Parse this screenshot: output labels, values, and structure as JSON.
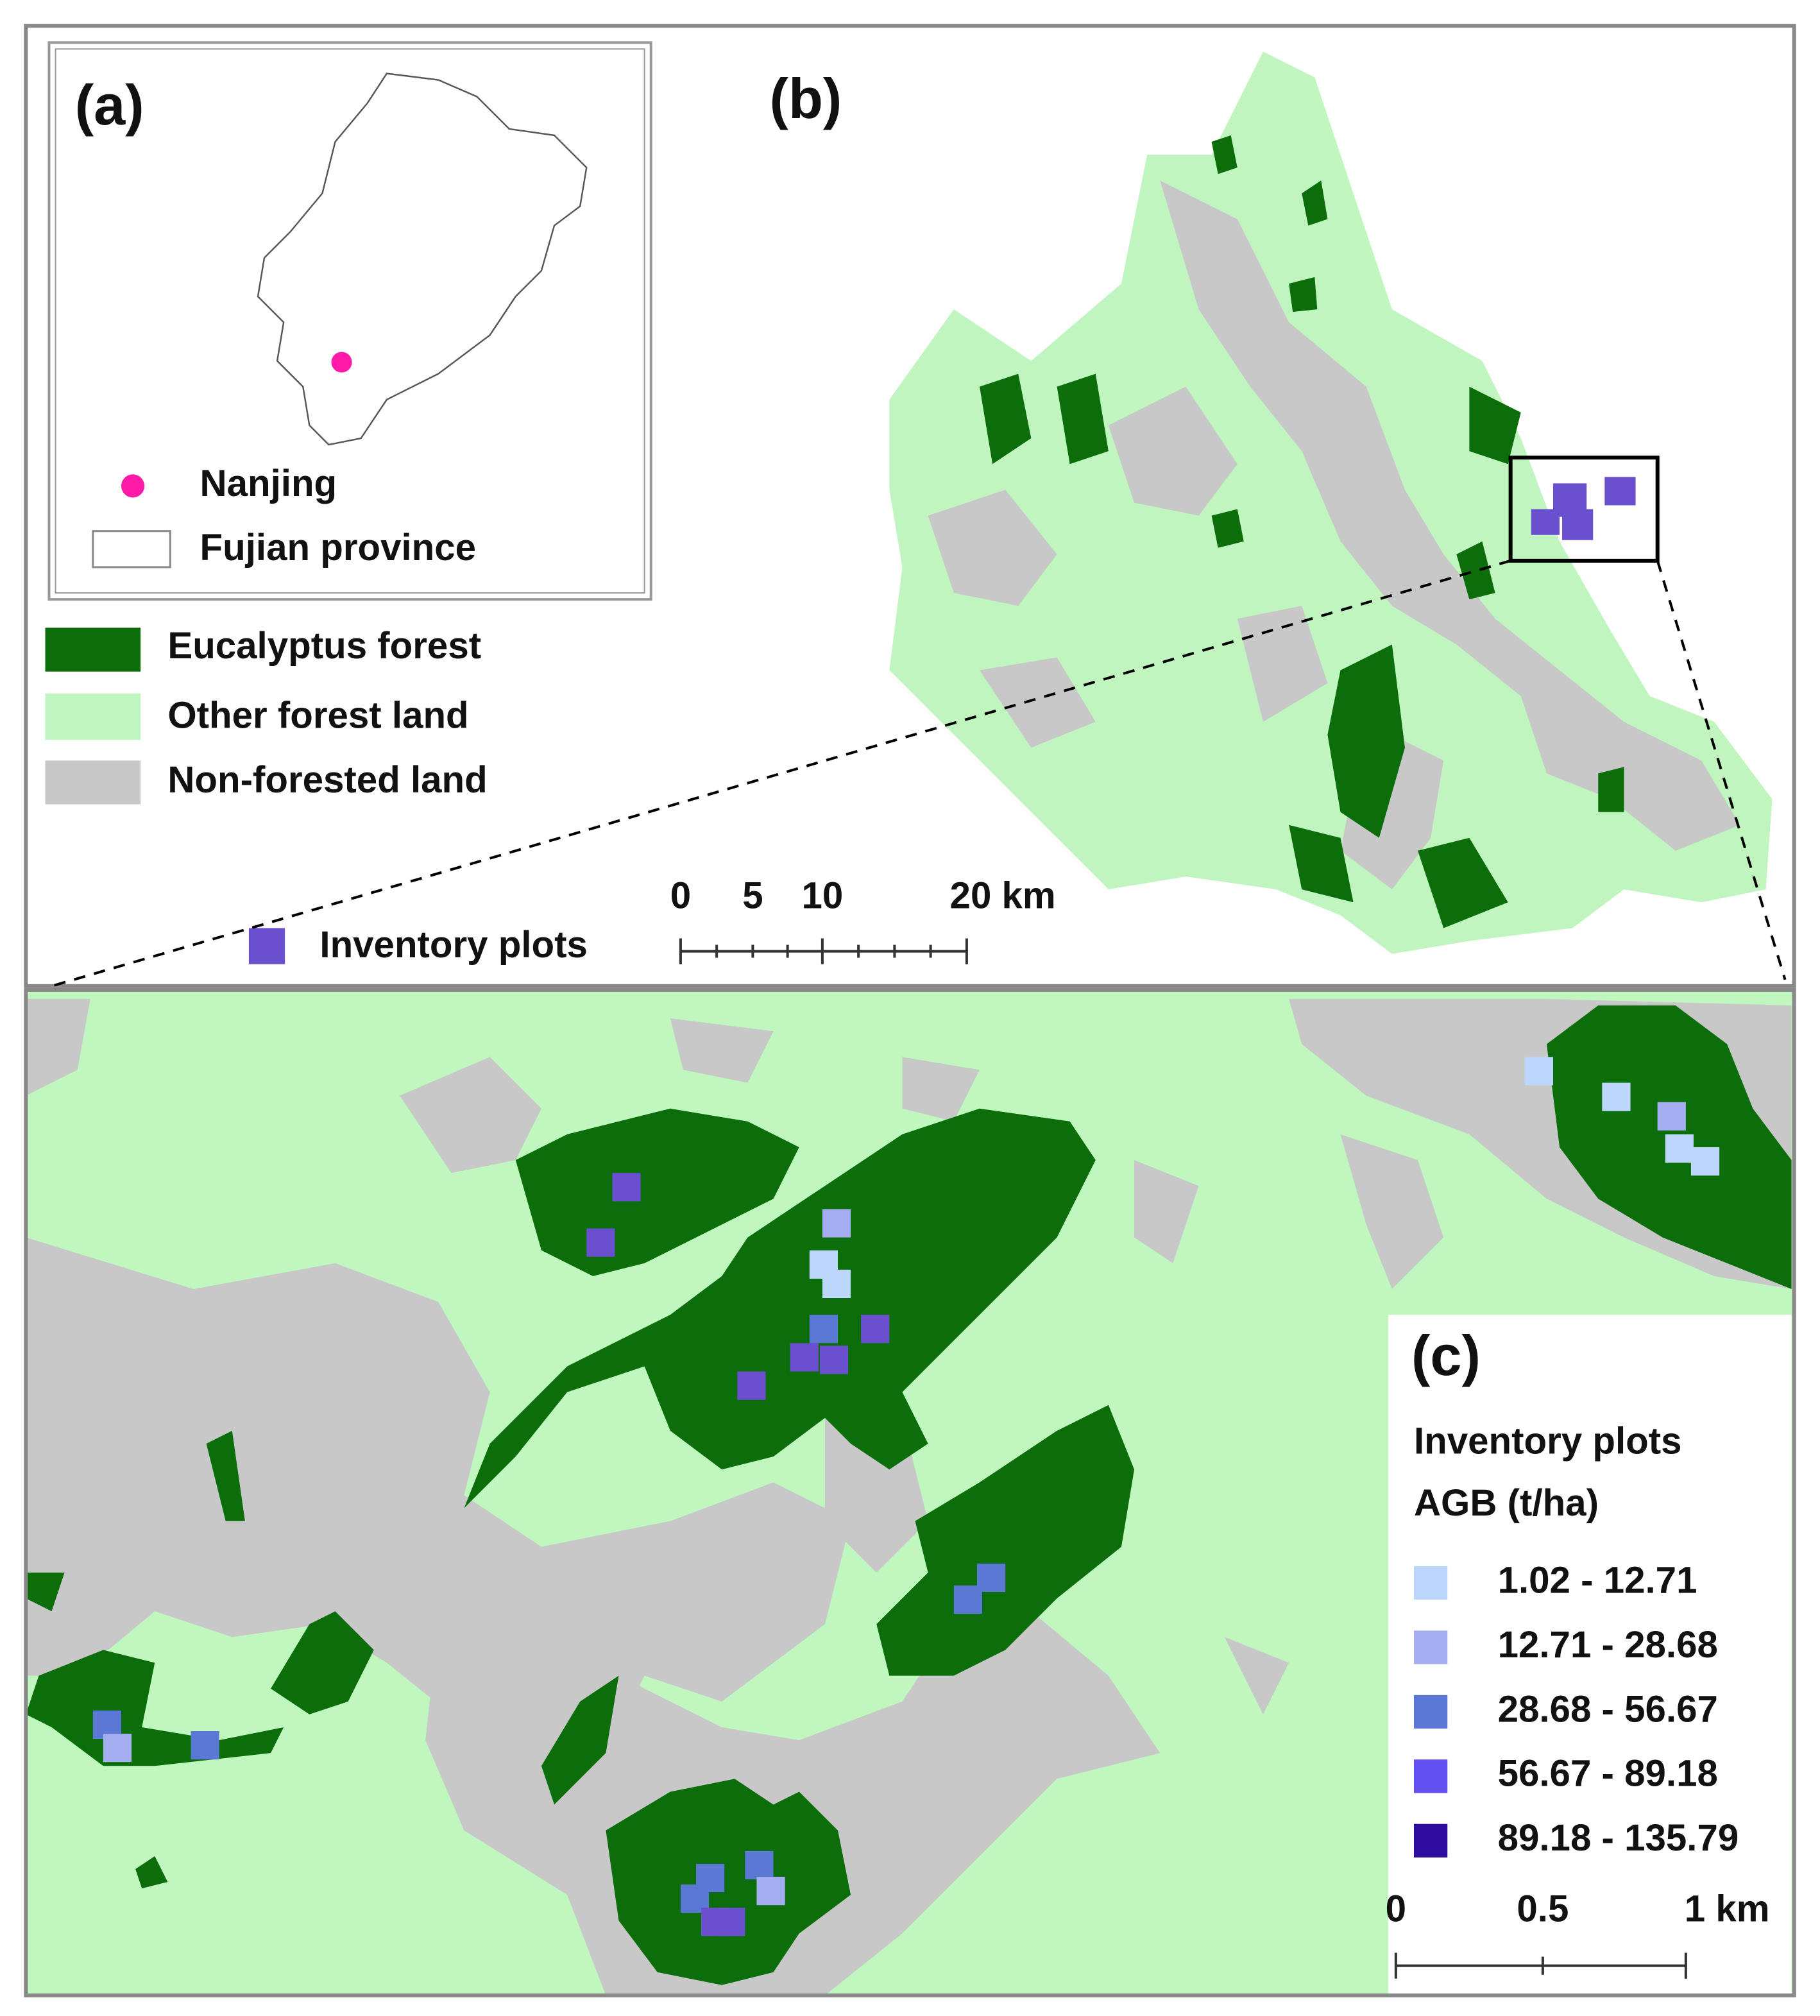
{
  "panel_a": {
    "label": "(a)",
    "legend": [
      "Nanjing",
      "Fujian province"
    ]
  },
  "panel_b": {
    "label": "(b)",
    "legend": [
      "Eucalyptus forest",
      "Other forest land",
      "Non-forested land",
      "Inventory plots"
    ],
    "scale_bar": [
      "0",
      "5",
      "10",
      "20 km"
    ]
  },
  "panel_c": {
    "label": "(c)",
    "legend_title": [
      "Inventory plots",
      "AGB (t/ha)"
    ],
    "classes": [
      "1.02 - 12.71",
      "12.71 - 28.68",
      "28.68 - 56.67",
      "56.67 - 89.18",
      "89.18 - 135.79"
    ],
    "scale_bar": [
      "0",
      "0.5",
      "1 km"
    ]
  }
}
